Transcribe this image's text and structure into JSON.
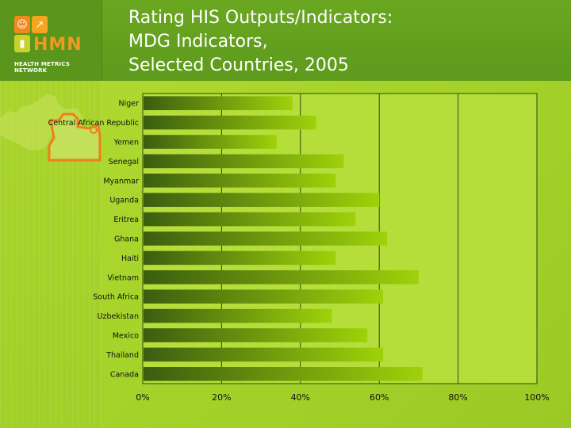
{
  "header": {
    "title_lines": [
      "Rating HIS Outputs/Indicators:",
      "MDG Indicators,",
      "Selected Countries, 2005"
    ]
  },
  "logo": {
    "text": "HMN",
    "subtitle": "HEALTH METRICS NETWORK"
  },
  "colors": {
    "header": "#5e9a1c",
    "background": "#a8d42c",
    "bar_dark": "#3b5d10",
    "bar_light": "#9fd20a",
    "logo_accent": "#f29a1f"
  },
  "chart_data": {
    "type": "bar",
    "orientation": "horizontal",
    "categories": [
      "Niger",
      "Central African Republic",
      "Yemen",
      "Senegal",
      "Myanmar",
      "Uganda",
      "Eritrea",
      "Ghana",
      "Haiti",
      "Vietnam",
      "South Africa",
      "Uzbekistan",
      "Mexico",
      "Thailand",
      "Canada"
    ],
    "values": [
      38,
      44,
      34,
      51,
      49,
      60,
      54,
      62,
      49,
      70,
      61,
      48,
      57,
      61,
      71
    ],
    "xlim": [
      0,
      100
    ],
    "x_ticks": [
      "0%",
      "20%",
      "40%",
      "60%",
      "80%",
      "100%"
    ],
    "grid": true,
    "legend": "none"
  }
}
